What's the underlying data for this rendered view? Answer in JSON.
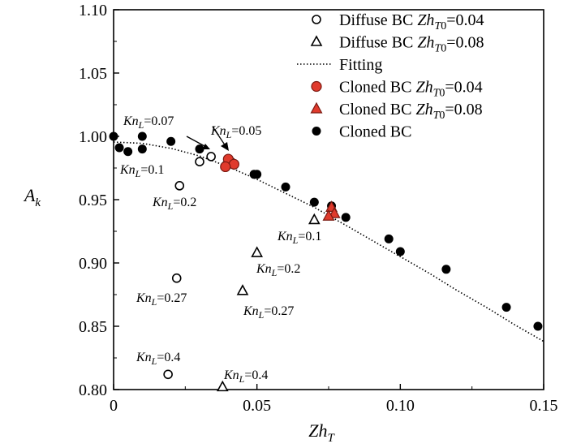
{
  "chart_data": {
    "type": "scatter",
    "xlabel": "Zh_T",
    "ylabel": "A_k",
    "xlim": [
      0,
      0.15
    ],
    "ylim": [
      0.8,
      1.1
    ],
    "x_ticks": [
      "0",
      "0.05",
      "0.10",
      "0.15"
    ],
    "y_ticks": [
      "0.80",
      "0.85",
      "0.90",
      "0.95",
      "1.00",
      "1.05",
      "1.10"
    ],
    "legend_position": "top-right",
    "colors": {
      "cloned_red": "#e03a2c",
      "black": "#000000"
    },
    "series": [
      {
        "name": "Diffuse BC Zh_T0=0.04",
        "legend": {
          "prefix": "Diffuse BC ",
          "italic": "Zh",
          "sub": "T",
          "sub2": "0",
          "suffix": "=0.04"
        },
        "marker": "circle-open",
        "points": [
          {
            "x": 0.034,
            "y": 0.984
          },
          {
            "x": 0.03,
            "y": 0.98
          },
          {
            "x": 0.023,
            "y": 0.961
          },
          {
            "x": 0.022,
            "y": 0.888
          },
          {
            "x": 0.019,
            "y": 0.812
          }
        ]
      },
      {
        "name": "Diffuse BC Zh_T0=0.08",
        "legend": {
          "prefix": "Diffuse BC ",
          "italic": "Zh",
          "sub": "T",
          "sub2": "0",
          "suffix": "=0.08"
        },
        "marker": "triangle-open",
        "points": [
          {
            "x": 0.07,
            "y": 0.934
          },
          {
            "x": 0.05,
            "y": 0.908
          },
          {
            "x": 0.045,
            "y": 0.878
          },
          {
            "x": 0.038,
            "y": 0.802
          }
        ]
      },
      {
        "name": "Fitting",
        "legend": {
          "prefix": "Fitting",
          "italic": "",
          "sub": "",
          "sub2": "",
          "suffix": ""
        },
        "marker": "dotted-line",
        "points": [
          {
            "x": 0.0,
            "y": 0.9955
          },
          {
            "x": 0.01,
            "y": 0.9945
          },
          {
            "x": 0.02,
            "y": 0.9905
          },
          {
            "x": 0.03,
            "y": 0.9845
          },
          {
            "x": 0.04,
            "y": 0.976
          },
          {
            "x": 0.05,
            "y": 0.966
          },
          {
            "x": 0.06,
            "y": 0.955
          },
          {
            "x": 0.07,
            "y": 0.944
          },
          {
            "x": 0.08,
            "y": 0.931
          },
          {
            "x": 0.09,
            "y": 0.918
          },
          {
            "x": 0.1,
            "y": 0.905
          },
          {
            "x": 0.11,
            "y": 0.892
          },
          {
            "x": 0.12,
            "y": 0.878
          },
          {
            "x": 0.13,
            "y": 0.865
          },
          {
            "x": 0.14,
            "y": 0.851
          },
          {
            "x": 0.15,
            "y": 0.838
          }
        ]
      },
      {
        "name": "Cloned BC Zh_T0=0.04",
        "legend": {
          "prefix": "Cloned BC ",
          "italic": "Zh",
          "sub": "T",
          "sub2": "0",
          "suffix": "=0.04"
        },
        "marker": "circle-red",
        "points": [
          {
            "x": 0.04,
            "y": 0.982
          },
          {
            "x": 0.042,
            "y": 0.978
          },
          {
            "x": 0.039,
            "y": 0.976
          }
        ]
      },
      {
        "name": "Cloned BC Zh_T0=0.08",
        "legend": {
          "prefix": "Cloned BC ",
          "italic": "Zh",
          "sub": "T",
          "sub2": "0",
          "suffix": "=0.08"
        },
        "marker": "triangle-red",
        "points": [
          {
            "x": 0.076,
            "y": 0.944
          },
          {
            "x": 0.077,
            "y": 0.939
          },
          {
            "x": 0.075,
            "y": 0.937
          }
        ]
      },
      {
        "name": "Cloned BC",
        "legend": {
          "prefix": "Cloned BC",
          "italic": "",
          "sub": "",
          "sub2": "",
          "suffix": ""
        },
        "marker": "circle-black",
        "points": [
          {
            "x": 0.0,
            "y": 1.0
          },
          {
            "x": 0.002,
            "y": 0.991
          },
          {
            "x": 0.005,
            "y": 0.988
          },
          {
            "x": 0.01,
            "y": 1.0
          },
          {
            "x": 0.01,
            "y": 0.99
          },
          {
            "x": 0.02,
            "y": 0.996
          },
          {
            "x": 0.03,
            "y": 0.99
          },
          {
            "x": 0.039,
            "y": 0.977
          },
          {
            "x": 0.041,
            "y": 0.98
          },
          {
            "x": 0.049,
            "y": 0.97
          },
          {
            "x": 0.05,
            "y": 0.97
          },
          {
            "x": 0.06,
            "y": 0.96
          },
          {
            "x": 0.07,
            "y": 0.948
          },
          {
            "x": 0.076,
            "y": 0.945
          },
          {
            "x": 0.081,
            "y": 0.936
          },
          {
            "x": 0.096,
            "y": 0.919
          },
          {
            "x": 0.1,
            "y": 0.909
          },
          {
            "x": 0.116,
            "y": 0.895
          },
          {
            "x": 0.137,
            "y": 0.865
          },
          {
            "x": 0.148,
            "y": 0.85
          }
        ]
      }
    ],
    "annotations": [
      {
        "text": "Kn_L=0.07",
        "italic": "Kn",
        "sub": "L",
        "value": "=0.07"
      },
      {
        "text": "Kn_L=0.05",
        "italic": "Kn",
        "sub": "L",
        "value": "=0.05"
      },
      {
        "text": "Kn_L=0.1",
        "italic": "Kn",
        "sub": "L",
        "value": "=0.1"
      },
      {
        "text": "Kn_L=0.2",
        "italic": "Kn",
        "sub": "L",
        "value": "=0.2"
      },
      {
        "text": "Kn_L=0.1",
        "italic": "Kn",
        "sub": "L",
        "value": "=0.1"
      },
      {
        "text": "Kn_L=0.2",
        "italic": "Kn",
        "sub": "L",
        "value": "=0.2"
      },
      {
        "text": "Kn_L=0.27",
        "italic": "Kn",
        "sub": "L",
        "value": "=0.27"
      },
      {
        "text": "Kn_L=0.27",
        "italic": "Kn",
        "sub": "L",
        "value": "=0.27"
      },
      {
        "text": "Kn_L=0.4",
        "italic": "Kn",
        "sub": "L",
        "value": "=0.4"
      },
      {
        "text": "Kn_L=0.4",
        "italic": "Kn",
        "sub": "L",
        "value": "=0.4"
      }
    ]
  }
}
